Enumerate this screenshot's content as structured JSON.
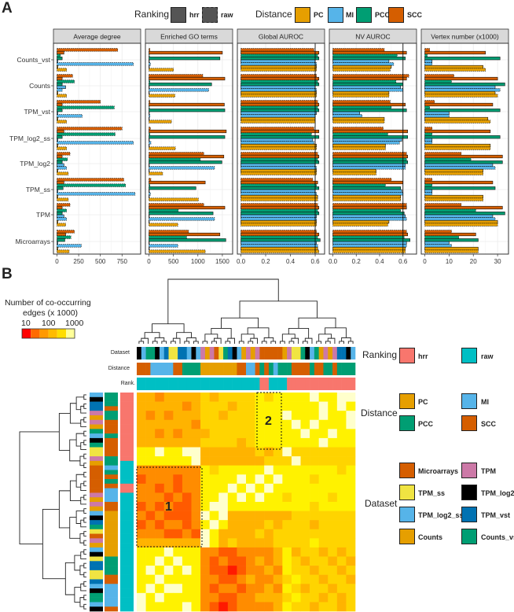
{
  "panel_a": {
    "label": "A",
    "legend": {
      "ranking_title": "Ranking",
      "ranking": [
        {
          "label": "hrr"
        },
        {
          "label": "raw"
        }
      ],
      "distance_title": "Distance",
      "distance": [
        {
          "label": "PC",
          "color": "#e69f00"
        },
        {
          "label": "MI",
          "color": "#56b4e9"
        },
        {
          "label": "PCC",
          "color": "#009e73"
        },
        {
          "label": "SCC",
          "color": "#d55e00"
        }
      ],
      "ranking_fill": "#555555"
    }
  },
  "panel_b": {
    "label": "B",
    "colorbar": {
      "title_line1": "Number of co-occurring",
      "title_line2": "edges (x 1000)",
      "labels": [
        "10",
        "100",
        "1000"
      ]
    },
    "annotation_labels": {
      "dataset": "Dataset",
      "distance": "Distance",
      "rank": "Rank."
    },
    "legend": {
      "ranking_title": "Ranking",
      "ranking": [
        {
          "label": "hrr",
          "color": "#f8766d"
        },
        {
          "label": "raw",
          "color": "#00bfc4"
        }
      ],
      "distance_title": "Distance",
      "distance": [
        {
          "label": "PC",
          "color": "#e69f00"
        },
        {
          "label": "MI",
          "color": "#56b4e9"
        },
        {
          "label": "PCC",
          "color": "#009e73"
        },
        {
          "label": "SCC",
          "color": "#d55e00"
        }
      ],
      "dataset_title": "Dataset",
      "dataset": [
        {
          "label": "Microarrays",
          "color": "#d55e00"
        },
        {
          "label": "TPM",
          "color": "#cc79a7"
        },
        {
          "label": "TPM_ss",
          "color": "#f0e442"
        },
        {
          "label": "TPM_log2",
          "color": "#000000"
        },
        {
          "label": "TPM_log2_ss",
          "color": "#56b4e9"
        },
        {
          "label": "TPM_vst",
          "color": "#0072b2"
        },
        {
          "label": "Counts",
          "color": "#e69f00"
        },
        {
          "label": "Counts_vst",
          "color": "#009e73"
        }
      ]
    },
    "boxes": [
      {
        "label": "1"
      },
      {
        "label": "2"
      }
    ]
  },
  "chart_data": [
    {
      "type": "bar",
      "title": "Average degree",
      "categories": [
        "Counts_vst",
        "Counts",
        "TPM_vst",
        "TPM_log2_ss",
        "TPM_log2",
        "TPM_ss",
        "TPM",
        "Microarrays"
      ],
      "xlim": [
        0,
        965
      ],
      "xticks": [
        0,
        250,
        500,
        750
      ],
      "xtick_labels": [
        "0",
        "250",
        "500",
        "750"
      ],
      "reference_line": null,
      "series": [
        {
          "name": "SCC raw",
          "distance": "SCC",
          "ranking": "raw",
          "values": [
            700,
            180,
            500,
            750,
            150,
            770,
            150,
            200
          ]
        },
        {
          "name": "SCC hrr",
          "distance": "SCC",
          "ranking": "hrr",
          "values": [
            80,
            60,
            60,
            80,
            60,
            80,
            60,
            100
          ]
        },
        {
          "name": "PCC raw",
          "distance": "PCC",
          "ranking": "raw",
          "values": [
            40,
            200,
            660,
            670,
            120,
            790,
            110,
            160
          ]
        },
        {
          "name": "PCC hrr",
          "distance": "PCC",
          "ranking": "hrr",
          "values": [
            60,
            60,
            60,
            60,
            60,
            70,
            60,
            90
          ]
        },
        {
          "name": "MI hrr",
          "distance": "MI",
          "ranking": "hrr",
          "values": [
            10,
            100,
            10,
            10,
            80,
            10,
            80,
            10
          ]
        },
        {
          "name": "MI raw",
          "distance": "MI",
          "ranking": "raw",
          "values": [
            880,
            60,
            290,
            880,
            110,
            900,
            110,
            280
          ]
        },
        {
          "name": "PC hrr",
          "distance": "PC",
          "ranking": "hrr",
          "values": [
            10,
            10,
            10,
            10,
            10,
            10,
            10,
            10
          ]
        },
        {
          "name": "PC raw",
          "distance": "PC",
          "ranking": "raw",
          "values": [
            110,
            110,
            110,
            110,
            130,
            130,
            100,
            140
          ]
        }
      ]
    },
    {
      "type": "bar",
      "title": "Enriched GO terms",
      "categories": [
        "Counts_vst",
        "Counts",
        "TPM_vst",
        "TPM_log2_ss",
        "TPM_log2",
        "TPM_ss",
        "TPM",
        "Microarrays"
      ],
      "xlim": [
        0,
        1710
      ],
      "xticks": [
        0,
        500,
        1000,
        1500
      ],
      "xtick_labels": [
        "0",
        "500",
        "1000",
        "1500"
      ],
      "reference_line": null,
      "series": [
        {
          "name": "SCC raw",
          "distance": "SCC",
          "ranking": "raw",
          "values": [
            20,
            1100,
            20,
            30,
            1120,
            40,
            1120,
            810
          ]
        },
        {
          "name": "SCC hrr",
          "distance": "SCC",
          "ranking": "hrr",
          "values": [
            1500,
            1550,
            1540,
            1580,
            1530,
            1150,
            1550,
            1450
          ]
        },
        {
          "name": "PCC raw",
          "distance": "PCC",
          "ranking": "raw",
          "values": [
            10,
            20,
            10,
            20,
            1050,
            20,
            600,
            770
          ]
        },
        {
          "name": "PCC hrr",
          "distance": "PCC",
          "ranking": "hrr",
          "values": [
            1450,
            1280,
            1550,
            1550,
            1490,
            960,
            1310,
            1570
          ]
        },
        {
          "name": "MI hrr",
          "distance": "MI",
          "ranking": "hrr",
          "values": [
            0,
            0,
            0,
            0,
            0,
            0,
            0,
            0
          ]
        },
        {
          "name": "MI raw",
          "distance": "MI",
          "ranking": "raw",
          "values": [
            30,
            1220,
            20,
            40,
            1340,
            30,
            1340,
            590
          ]
        },
        {
          "name": "PC hrr",
          "distance": "PC",
          "ranking": "hrr",
          "values": [
            0,
            0,
            0,
            0,
            0,
            0,
            0,
            0
          ]
        },
        {
          "name": "PC raw",
          "distance": "PC",
          "ranking": "raw",
          "values": [
            500,
            530,
            460,
            540,
            280,
            1010,
            590,
            1150
          ]
        }
      ]
    },
    {
      "type": "bar",
      "title": "Global AUROC",
      "categories": [
        "Counts_vst",
        "Counts",
        "TPM_vst",
        "TPM_log2_ss",
        "TPM_log2",
        "TPM_ss",
        "TPM",
        "Microarrays"
      ],
      "xlim": [
        0,
        0.676
      ],
      "xticks": [
        0,
        0.2,
        0.4,
        0.6
      ],
      "xtick_labels": [
        "0.0",
        "0.2",
        "0.4",
        "0.6"
      ],
      "reference_line": 0.6,
      "series": [
        {
          "name": "SCC raw",
          "distance": "SCC",
          "ranking": "raw",
          "values": [
            0.59,
            0.61,
            0.62,
            0.59,
            0.62,
            0.58,
            0.62,
            0.61
          ]
        },
        {
          "name": "SCC hrr",
          "distance": "SCC",
          "ranking": "hrr",
          "values": [
            0.63,
            0.63,
            0.63,
            0.63,
            0.63,
            0.62,
            0.63,
            0.63
          ]
        },
        {
          "name": "PCC raw",
          "distance": "PCC",
          "ranking": "raw",
          "values": [
            0.62,
            0.62,
            0.62,
            0.57,
            0.62,
            0.61,
            0.62,
            0.62
          ]
        },
        {
          "name": "PCC hrr",
          "distance": "PCC",
          "ranking": "hrr",
          "values": [
            0.63,
            0.63,
            0.63,
            0.63,
            0.63,
            0.63,
            0.63,
            0.64
          ]
        },
        {
          "name": "MI hrr",
          "distance": "MI",
          "ranking": "hrr",
          "values": [
            0.6,
            0.6,
            0.61,
            0.58,
            0.6,
            0.6,
            0.61,
            0.61
          ]
        },
        {
          "name": "MI raw",
          "distance": "MI",
          "ranking": "raw",
          "values": [
            0.61,
            0.61,
            0.6,
            0.59,
            0.61,
            0.61,
            0.61,
            0.62
          ]
        },
        {
          "name": "PC hrr",
          "distance": "PC",
          "ranking": "hrr",
          "values": [
            0.61,
            0.61,
            0.6,
            0.61,
            0.61,
            0.62,
            0.61,
            0.62
          ]
        },
        {
          "name": "PC raw",
          "distance": "PC",
          "ranking": "raw",
          "values": [
            0.61,
            0.61,
            0.6,
            0.61,
            0.61,
            0.62,
            0.61,
            0.63
          ]
        }
      ]
    },
    {
      "type": "bar",
      "title": "NV AUROC",
      "categories": [
        "Counts_vst",
        "Counts",
        "TPM_vst",
        "TPM_log2_ss",
        "TPM_log2",
        "TPM_ss",
        "TPM",
        "Microarrays"
      ],
      "xlim": [
        0,
        0.716
      ],
      "xticks": [
        0,
        0.2,
        0.4,
        0.6
      ],
      "xtick_labels": [
        "0.0",
        "0.2",
        "0.4",
        "0.6"
      ],
      "reference_line": 0.6,
      "series": [
        {
          "name": "SCC raw",
          "distance": "SCC",
          "ranking": "raw",
          "values": [
            0.44,
            0.65,
            0.49,
            0.43,
            0.63,
            0.5,
            0.63,
            0.63
          ]
        },
        {
          "name": "SCC hrr",
          "distance": "SCC",
          "ranking": "hrr",
          "values": [
            0.63,
            0.63,
            0.62,
            0.64,
            0.64,
            0.6,
            0.63,
            0.64
          ]
        },
        {
          "name": "PCC raw",
          "distance": "PCC",
          "ranking": "raw",
          "values": [
            0.55,
            0.54,
            0.5,
            0.47,
            0.63,
            0.45,
            0.58,
            0.61
          ]
        },
        {
          "name": "PCC hrr",
          "distance": "PCC",
          "ranking": "hrr",
          "values": [
            0.62,
            0.6,
            0.63,
            0.64,
            0.64,
            0.58,
            0.61,
            0.66
          ]
        },
        {
          "name": "MI hrr",
          "distance": "MI",
          "ranking": "hrr",
          "values": [
            0.48,
            0.58,
            0.23,
            0.59,
            0.62,
            0.59,
            0.62,
            0.63
          ]
        },
        {
          "name": "MI raw",
          "distance": "MI",
          "ranking": "raw",
          "values": [
            0.52,
            0.6,
            0.25,
            0.57,
            0.62,
            0.6,
            0.63,
            0.63
          ]
        },
        {
          "name": "PC hrr",
          "distance": "PC",
          "ranking": "hrr",
          "values": [
            0.5,
            0.48,
            0.44,
            0.45,
            0.37,
            0.58,
            0.48,
            0.62
          ]
        },
        {
          "name": "PC raw",
          "distance": "PC",
          "ranking": "raw",
          "values": [
            0.49,
            0.48,
            0.44,
            0.45,
            0.37,
            0.58,
            0.47,
            0.62
          ]
        }
      ]
    },
    {
      "type": "bar",
      "title": "Vertex number (x1000)",
      "categories": [
        "Counts_vst",
        "Counts",
        "TPM_vst",
        "TPM_log2_ss",
        "TPM_log2",
        "TPM_ss",
        "TPM",
        "Microarrays"
      ],
      "xlim": [
        0,
        34.5
      ],
      "xticks": [
        0,
        10,
        20,
        30
      ],
      "xtick_labels": [
        "0",
        "10",
        "20",
        "30"
      ],
      "reference_line": null,
      "series": [
        {
          "name": "SCC raw",
          "distance": "SCC",
          "ranking": "raw",
          "values": [
            2,
            12,
            4,
            3,
            15,
            3,
            15,
            11
          ]
        },
        {
          "name": "SCC hrr",
          "distance": "SCC",
          "ranking": "hrr",
          "values": [
            25,
            30,
            28,
            27,
            32,
            28,
            32,
            21
          ]
        },
        {
          "name": "PCC raw",
          "distance": "PCC",
          "ranking": "raw",
          "values": [
            1,
            11,
            2,
            3,
            19,
            3,
            21,
            14
          ]
        },
        {
          "name": "PCC hrr",
          "distance": "PCC",
          "ranking": "hrr",
          "values": [
            31,
            33,
            31,
            31,
            32,
            29,
            33,
            22
          ]
        },
        {
          "name": "MI hrr",
          "distance": "MI",
          "ranking": "hrr",
          "values": [
            3,
            29,
            10,
            3,
            28,
            3,
            28,
            10
          ]
        },
        {
          "name": "MI raw",
          "distance": "MI",
          "ranking": "raw",
          "values": [
            3,
            31,
            10,
            3,
            29,
            3,
            29,
            11
          ]
        },
        {
          "name": "PC hrr",
          "distance": "PC",
          "ranking": "hrr",
          "values": [
            24,
            29,
            26,
            27,
            24,
            24,
            30,
            22
          ]
        },
        {
          "name": "PC raw",
          "distance": "PC",
          "ranking": "raw",
          "values": [
            25,
            30,
            27,
            27,
            24,
            24,
            30,
            22
          ]
        }
      ]
    },
    {
      "type": "heatmap",
      "title": "Number of co-occurring edges (x 1000)",
      "scale": "log10",
      "scale_range": [
        10,
        1000
      ],
      "level_colors": [
        "#ff1a00",
        "#ff5a00",
        "#ff8c00",
        "#ffb300",
        "#ffd400",
        "#fff200",
        "#ffffcc"
      ],
      "matrix_levels_note": "approximate 24x24 grid of color levels (0=10 ... 6=1000)",
      "matrix_levels": [
        "332333343444454555565566",
        "333332344434455555556565",
        "323233344344455565556556",
        "333333244444455556565556",
        "332323334444455555655655",
        "333333344443455555556555",
        "556556633333343464444444",
        "555555633333334446444444",
        "222222254555556555555545",
        "122212255556565655545555",
        "221212255565656555555555",
        "222121255656565545555455",
        "121211256655555555545555",
        "212111265633333334444444",
        "121221256533334344434444",
        "222112165333343444444444",
        "333333365343333444454444",
        "555655522112222353443434",
        "556565521211232354344343",
        "565656521101223254434434",
        "556555522112322345443443",
        "565665521221223254344344",
        "656555522112233345443434",
        "655556521012222354434434"
      ],
      "category_codes": {
        "dataset": {
          "a": "Microarrays",
          "b": "TPM",
          "c": "TPM_ss",
          "d": "TPM_log2",
          "e": "TPM_log2_ss",
          "f": "TPM_vst",
          "g": "Counts",
          "h": "Counts_vst"
        },
        "distance": {
          "p": "PC",
          "m": "MI",
          "c": "PCC",
          "s": "SCC"
        },
        "rank": {
          "h": "hrr",
          "r": "raw"
        }
      },
      "column_annotations": {
        "dataset": "dehhdefccffedebgbachfdegbgbaaaaagbcchdehgbgbffde",
        "distance": "sssmmmmmsscccc",
        "distance_full": "sssmmmmmssccccppppppppssmmscscmcccssssc sscc scccc",
        "rank": "rrrrrrrrrrrrrrrrrrrrrrrrrrrhhrrrrhhhhhhhhhhhhhhh"
      },
      "row_annotations": {
        "dataset": "edffbgbghedhccbgaaaaaabgbgedfhcabgedcffccfedhhed",
        "distance": "cccsccssscssssccmcscsmmmssppppppppppccccssmmmmmss",
        "rank": "hhhhhhhhhhhhhhhrrrrrhhrrrrrrrrrrrrrrrrrrrrrrrrrr"
      }
    }
  ]
}
